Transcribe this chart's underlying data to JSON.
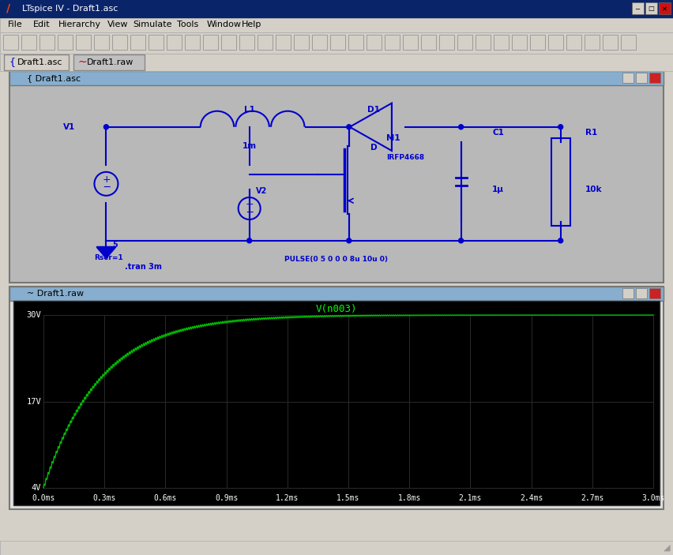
{
  "window_title": "LTspice IV - Draft1.asc",
  "menu_items": [
    "File",
    "Edit",
    "Hierarchy",
    "View",
    "Simulate",
    "Tools",
    "Window",
    "Help"
  ],
  "tab1": "Draft1.asc",
  "tab2": "Draft1.raw",
  "schematic_title": "Draft1.asc",
  "waveform_title": "Draft1.raw",
  "plot_title": "V(n003)",
  "plot_title_color": "#00ff00",
  "curve_color": "#00bb00",
  "yticks": [
    "4V",
    "17V",
    "30V"
  ],
  "ytick_vals": [
    4,
    17,
    30
  ],
  "xticks": [
    "0.0ms",
    "0.3ms",
    "0.6ms",
    "0.9ms",
    "1.2ms",
    "1.5ms",
    "1.8ms",
    "2.1ms",
    "2.4ms",
    "2.7ms",
    "3.0ms"
  ],
  "xtick_vals": [
    0.0,
    0.3,
    0.6,
    0.9,
    1.2,
    1.5,
    1.8,
    2.1,
    2.4,
    2.7,
    3.0
  ],
  "v_init": 4.0,
  "v_final": 30.0,
  "tau": 0.28,
  "window_outer_bg": "#d4d0c8",
  "title_bar_color": "#0a246a",
  "title_bar_text": "#ffffff",
  "schematic_bg": "#b8b8b8",
  "schematic_line_color": "#0000cc",
  "node_dot_color": "#0000cc",
  "waveform_bg": "#000000",
  "inner_title_bg": "#87aece",
  "tab_bg": "#d4d0c8",
  "fig_w": 8.52,
  "fig_h": 7.03,
  "fig_dpi": 100
}
